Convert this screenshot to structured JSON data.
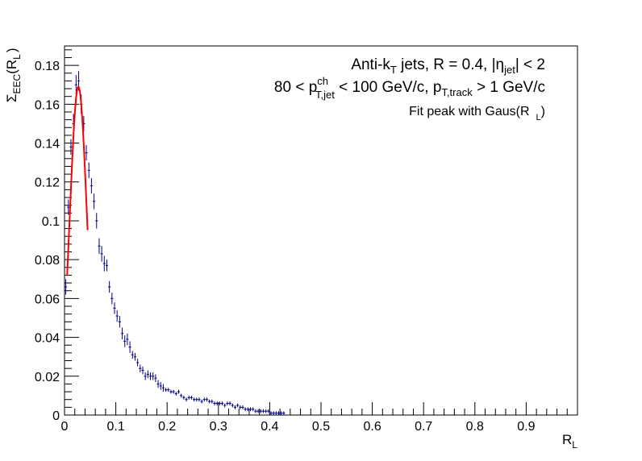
{
  "annotations": {
    "line1": {
      "a": "Anti-k",
      "a_sub": "T",
      "b": " jets, R = 0.4, |η",
      "b_sub": "jet",
      "c": "| < 2"
    },
    "line2": {
      "a": "80 < p",
      "a_sup": "ch",
      "a_sub": "T,jet",
      "b": " < 100 GeV/c,  p",
      "b_sub": "T,track",
      "c": " > 1 GeV/c"
    },
    "line3": {
      "a": "Fit peak with Gaus(R",
      "a_sub": "L",
      "c": ")"
    }
  },
  "axes": {
    "ylabel": {
      "main": "Σ",
      "sub1": "EEC",
      "mid": "(R",
      "sub2": "L",
      "end": ")"
    },
    "xlabel": {
      "main": "R",
      "sub": "L"
    }
  },
  "colors": {
    "points": "#000080",
    "fit": "#ff0000",
    "axis": "#000000"
  },
  "chart_data": {
    "type": "scatter",
    "xlim": [
      0,
      1.0
    ],
    "ylim": [
      0,
      0.19
    ],
    "x_ticks": [
      "0",
      "0.1",
      "0.2",
      "0.3",
      "0.4",
      "0.5",
      "0.6",
      "0.7",
      "0.8",
      "0.9"
    ],
    "y_ticks": [
      "0",
      "0.02",
      "0.04",
      "0.06",
      "0.08",
      "0.1",
      "0.12",
      "0.14",
      "0.16",
      "0.18"
    ],
    "grid": false,
    "bin_width": 0.005,
    "series": [
      {
        "x": [
          0.0025,
          0.0075,
          0.0125,
          0.0175,
          0.0225,
          0.0275,
          0.0325,
          0.0375,
          0.0425,
          0.0475,
          0.0525,
          0.0575,
          0.0625,
          0.0675,
          0.0725,
          0.0775,
          0.0825,
          0.0875,
          0.0925,
          0.0975,
          0.1025,
          0.1075,
          0.1125,
          0.1175,
          0.1225,
          0.1275,
          0.1325,
          0.1375,
          0.1425,
          0.1475,
          0.1525,
          0.1575,
          0.1625,
          0.1675,
          0.1725,
          0.1775,
          0.1825,
          0.1875,
          0.1925,
          0.1975,
          0.2025,
          0.2075,
          0.2125,
          0.2175,
          0.2225,
          0.2275,
          0.2325,
          0.2375,
          0.2425,
          0.2475,
          0.2525,
          0.2575,
          0.2625,
          0.2675,
          0.2725,
          0.2775,
          0.2825,
          0.2875,
          0.2925,
          0.2975,
          0.3025,
          0.3075,
          0.3125,
          0.3175,
          0.3225,
          0.3275,
          0.3325,
          0.3375,
          0.3425,
          0.3475,
          0.3525,
          0.3575,
          0.3625,
          0.3675,
          0.3725,
          0.3775,
          0.3825,
          0.3875,
          0.3925,
          0.3975,
          0.4025,
          0.4075,
          0.4125,
          0.4175,
          0.4225,
          0.4275
        ],
        "y": [
          0.066,
          0.107,
          0.138,
          0.15,
          0.17,
          0.172,
          0.16,
          0.15,
          0.135,
          0.126,
          0.118,
          0.11,
          0.1,
          0.087,
          0.083,
          0.078,
          0.077,
          0.066,
          0.06,
          0.055,
          0.051,
          0.048,
          0.042,
          0.038,
          0.039,
          0.035,
          0.031,
          0.03,
          0.027,
          0.024,
          0.023,
          0.02,
          0.021,
          0.02,
          0.02,
          0.019,
          0.016,
          0.015,
          0.014,
          0.013,
          0.013,
          0.012,
          0.012,
          0.011,
          0.012,
          0.01,
          0.009,
          0.008,
          0.009,
          0.009,
          0.008,
          0.008,
          0.008,
          0.007,
          0.008,
          0.008,
          0.007,
          0.007,
          0.006,
          0.006,
          0.006,
          0.006,
          0.005,
          0.006,
          0.006,
          0.005,
          0.004,
          0.005,
          0.004,
          0.004,
          0.003,
          0.003,
          0.003,
          0.003,
          0.002,
          0.002,
          0.002,
          0.002,
          0.002,
          0.002,
          0.001,
          0.001,
          0.001,
          0.001,
          0.001,
          0.001
        ],
        "yerr": [
          0.004,
          0.004,
          0.004,
          0.005,
          0.005,
          0.005,
          0.005,
          0.004,
          0.004,
          0.004,
          0.004,
          0.004,
          0.004,
          0.004,
          0.004,
          0.004,
          0.003,
          0.003,
          0.003,
          0.003,
          0.003,
          0.003,
          0.003,
          0.003,
          0.003,
          0.003,
          0.002,
          0.002,
          0.002,
          0.002,
          0.002,
          0.002,
          0.002,
          0.002,
          0.002,
          0.002,
          0.002,
          0.002,
          0.002,
          0.001,
          0.001,
          0.001,
          0.001,
          0.001,
          0.001,
          0.001,
          0.001,
          0.001,
          0.001,
          0.001,
          0.001,
          0.001,
          0.001,
          0.001,
          0.001,
          0.001,
          0.001,
          0.001,
          0.001,
          0.001,
          0.001,
          0.001,
          0.001,
          0.001,
          0.001,
          0.001,
          0.001,
          0.001,
          0.001,
          0.001,
          0.001,
          0.001,
          0.001,
          0.001,
          0.001,
          0.001,
          0.001,
          0.001,
          0.001,
          0.001,
          0.001,
          0.001,
          0.001,
          0.001,
          0.001,
          0.001
        ]
      }
    ],
    "fit": {
      "type": "gaus",
      "mean": 0.027,
      "sigma": 0.0168,
      "amplitude": 0.169,
      "range": [
        0.005,
        0.045
      ]
    }
  }
}
